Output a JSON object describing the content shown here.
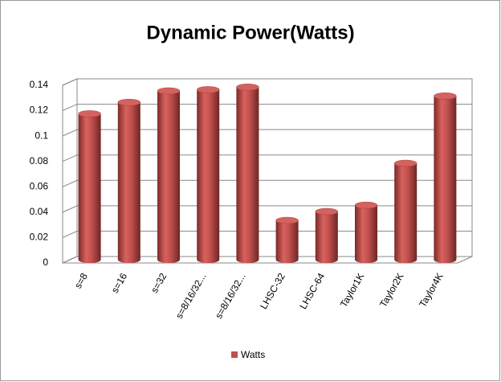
{
  "chart_data": {
    "type": "bar",
    "title": "Dynamic Power(Watts)",
    "categories": [
      "s=8",
      "s=16",
      "s=32",
      "s=8/16/32...",
      "s=8/16/32...",
      "LHSC-32",
      "LHSC-64",
      "Taylor1K",
      "Taylor2K",
      "Taylor4K"
    ],
    "series": [
      {
        "name": "Watts",
        "color": "#c0504d",
        "values": [
          0.115,
          0.124,
          0.133,
          0.134,
          0.136,
          0.031,
          0.038,
          0.043,
          0.076,
          0.129
        ]
      }
    ],
    "ylim": [
      0,
      0.14
    ],
    "yticks": [
      0,
      0.02,
      0.04,
      0.06,
      0.08,
      0.1,
      0.12,
      0.14
    ],
    "grid": true,
    "legend": "bottom"
  }
}
